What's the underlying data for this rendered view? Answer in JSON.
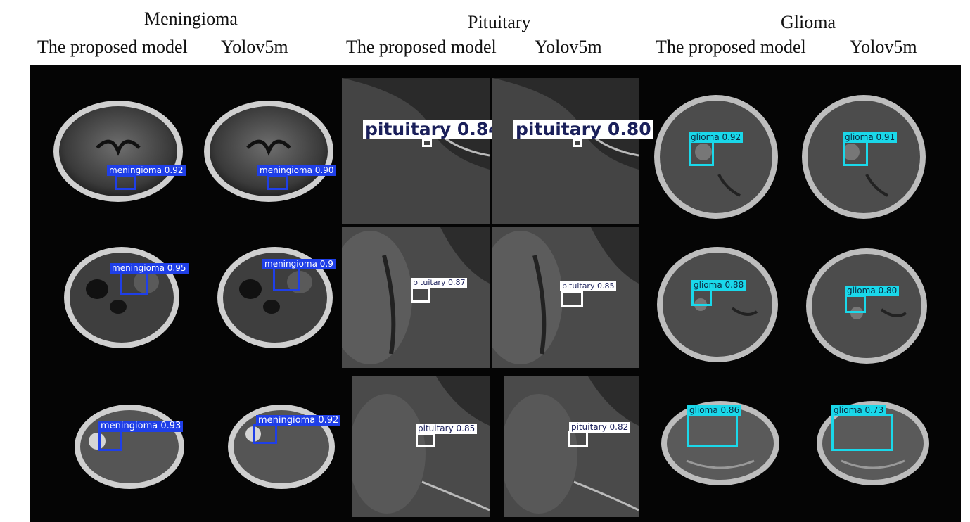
{
  "headers": {
    "meningioma": "Meningioma",
    "pituitary": "Pituitary",
    "glioma": "Glioma",
    "proposed": "The proposed model",
    "yolo": "Yolov5m"
  },
  "colors": {
    "meningioma": "#1f3fe8",
    "pituitary": "#ffffff",
    "glioma": "#1ad8ea",
    "panel_bg": "#050505"
  },
  "detections": {
    "men_r1_proposed": "meningioma  0.92",
    "men_r1_yolo": "meningioma  0.90",
    "men_r2_proposed": "meningioma  0.95",
    "men_r2_yolo": "meningioma  0.9",
    "men_r3_proposed": "meningioma  0.93",
    "men_r3_yolo": "meningioma  0.92",
    "pit_r1_proposed": "pituitary  0.84",
    "pit_r1_yolo": "pituitary  0.80",
    "pit_r2_proposed": "pituitary  0.87",
    "pit_r2_yolo": "pituitary  0.85",
    "pit_r3_proposed": "pituitary  0.85",
    "pit_r3_yolo": "pituitary  0.82",
    "gli_r1_proposed": "glioma  0.92",
    "gli_r1_yolo": "glioma  0.91",
    "gli_r2_proposed": "glioma  0.88",
    "gli_r2_yolo": "glioma  0.80",
    "gli_r3_proposed": "glioma  0.86",
    "gli_r3_yolo": "glioma  0.73"
  }
}
